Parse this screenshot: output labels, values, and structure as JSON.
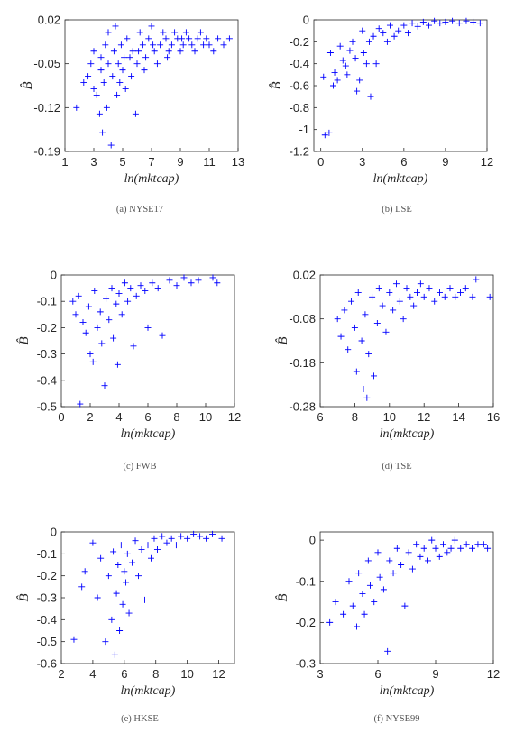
{
  "marker_color": "#0000ff",
  "chart_data": [
    {
      "type": "scatter",
      "caption": "(a)  NYSE17",
      "xlabel": "ln(mktcap)",
      "ylabel": "B̂",
      "xlim": [
        1,
        13
      ],
      "ylim": [
        -0.19,
        0.02
      ],
      "xticks": [
        1,
        3,
        5,
        7,
        9,
        11,
        13
      ],
      "yticks": [
        0.02,
        -0.05,
        -0.12,
        -0.19
      ],
      "yticklabels": [
        "0.02",
        "-0.05",
        "-0.12",
        "-0.19"
      ],
      "points": [
        [
          1.8,
          -0.12
        ],
        [
          2.3,
          -0.08
        ],
        [
          2.6,
          -0.07
        ],
        [
          2.8,
          -0.05
        ],
        [
          3.0,
          -0.09
        ],
        [
          3.0,
          -0.03
        ],
        [
          3.2,
          -0.1
        ],
        [
          3.4,
          -0.13
        ],
        [
          3.5,
          -0.06
        ],
        [
          3.5,
          -0.04
        ],
        [
          3.6,
          -0.16
        ],
        [
          3.7,
          -0.08
        ],
        [
          3.8,
          -0.02
        ],
        [
          3.9,
          -0.12
        ],
        [
          4.0,
          -0.05
        ],
        [
          4.0,
          0.0
        ],
        [
          4.2,
          -0.18
        ],
        [
          4.3,
          -0.07
        ],
        [
          4.4,
          -0.03
        ],
        [
          4.5,
          0.01
        ],
        [
          4.6,
          -0.1
        ],
        [
          4.7,
          -0.05
        ],
        [
          4.9,
          -0.02
        ],
        [
          5.0,
          -0.06
        ],
        [
          5.2,
          -0.09
        ],
        [
          5.3,
          -0.01
        ],
        [
          5.5,
          -0.04
        ],
        [
          5.7,
          -0.03
        ],
        [
          5.9,
          -0.13
        ],
        [
          6.0,
          -0.05
        ],
        [
          6.2,
          0.0
        ],
        [
          6.4,
          -0.02
        ],
        [
          6.6,
          -0.04
        ],
        [
          6.8,
          -0.01
        ],
        [
          7.0,
          0.01
        ],
        [
          7.2,
          -0.03
        ],
        [
          7.4,
          -0.05
        ],
        [
          7.6,
          -0.02
        ],
        [
          7.8,
          0.0
        ],
        [
          8.0,
          -0.01
        ],
        [
          8.2,
          -0.03
        ],
        [
          8.4,
          -0.02
        ],
        [
          8.6,
          0.0
        ],
        [
          8.8,
          -0.01
        ],
        [
          9.0,
          -0.03
        ],
        [
          9.2,
          -0.02
        ],
        [
          9.4,
          0.0
        ],
        [
          9.6,
          -0.01
        ],
        [
          9.8,
          -0.02
        ],
        [
          10.0,
          -0.03
        ],
        [
          10.2,
          -0.01
        ],
        [
          10.4,
          0.0
        ],
        [
          10.6,
          -0.02
        ],
        [
          10.8,
          -0.01
        ],
        [
          11.0,
          -0.02
        ],
        [
          11.3,
          -0.03
        ],
        [
          11.6,
          -0.01
        ],
        [
          12.0,
          -0.02
        ],
        [
          12.4,
          -0.01
        ],
        [
          5.1,
          -0.04
        ],
        [
          6.1,
          -0.03
        ],
        [
          7.1,
          -0.02
        ],
        [
          8.1,
          -0.04
        ],
        [
          9.1,
          -0.01
        ],
        [
          6.5,
          -0.06
        ],
        [
          4.8,
          -0.08
        ],
        [
          5.6,
          -0.07
        ]
      ]
    },
    {
      "type": "scatter",
      "caption": "(b) LSE",
      "xlabel": "ln(mktcap)",
      "ylabel": "B̂",
      "xlim": [
        -0.5,
        12
      ],
      "ylim": [
        -1.2,
        0
      ],
      "xticks": [
        0,
        3,
        6,
        9,
        12
      ],
      "yticks": [
        0,
        -0.2,
        -0.4,
        -0.6,
        -0.8,
        -1,
        -1.2
      ],
      "yticklabels": [
        "0",
        "-0.2",
        "-0.4",
        "-0.6",
        "-0.8",
        "-1",
        "-1.2"
      ],
      "points": [
        [
          0.2,
          -0.52
        ],
        [
          0.3,
          -1.05
        ],
        [
          0.6,
          -1.03
        ],
        [
          0.7,
          -0.3
        ],
        [
          0.9,
          -0.6
        ],
        [
          1.0,
          -0.48
        ],
        [
          1.2,
          -0.55
        ],
        [
          1.4,
          -0.24
        ],
        [
          1.6,
          -0.37
        ],
        [
          1.8,
          -0.42
        ],
        [
          1.9,
          -0.5
        ],
        [
          2.1,
          -0.28
        ],
        [
          2.3,
          -0.2
        ],
        [
          2.5,
          -0.35
        ],
        [
          2.6,
          -0.65
        ],
        [
          2.8,
          -0.55
        ],
        [
          3.0,
          -0.1
        ],
        [
          3.1,
          -0.3
        ],
        [
          3.3,
          -0.4
        ],
        [
          3.5,
          -0.2
        ],
        [
          3.6,
          -0.7
        ],
        [
          3.8,
          -0.15
        ],
        [
          4.0,
          -0.4
        ],
        [
          4.2,
          -0.08
        ],
        [
          4.5,
          -0.12
        ],
        [
          4.8,
          -0.2
        ],
        [
          5.0,
          -0.05
        ],
        [
          5.3,
          -0.15
        ],
        [
          5.6,
          -0.1
        ],
        [
          6.0,
          -0.05
        ],
        [
          6.3,
          -0.12
        ],
        [
          6.6,
          -0.03
        ],
        [
          7.0,
          -0.06
        ],
        [
          7.4,
          -0.02
        ],
        [
          7.8,
          -0.05
        ],
        [
          8.2,
          -0.01
        ],
        [
          8.6,
          -0.03
        ],
        [
          9.0,
          -0.02
        ],
        [
          9.5,
          -0.01
        ],
        [
          10.0,
          -0.03
        ],
        [
          10.5,
          -0.01
        ],
        [
          11.0,
          -0.02
        ],
        [
          11.5,
          -0.03
        ]
      ]
    },
    {
      "type": "scatter",
      "caption": "(c) FWB",
      "xlabel": "ln(mktcap)",
      "ylabel": "B̂",
      "xlim": [
        0,
        12
      ],
      "ylim": [
        -0.5,
        0
      ],
      "xticks": [
        0,
        2,
        4,
        6,
        8,
        10,
        12
      ],
      "yticks": [
        0,
        -0.1,
        -0.2,
        -0.3,
        -0.4,
        -0.5
      ],
      "yticklabels": [
        "0",
        "-0.1",
        "-0.2",
        "-0.3",
        "-0.4",
        "-0.5"
      ],
      "points": [
        [
          0.8,
          -0.1
        ],
        [
          1.0,
          -0.15
        ],
        [
          1.2,
          -0.08
        ],
        [
          1.3,
          -0.49
        ],
        [
          1.5,
          -0.18
        ],
        [
          1.7,
          -0.22
        ],
        [
          1.9,
          -0.12
        ],
        [
          2.0,
          -0.3
        ],
        [
          2.2,
          -0.33
        ],
        [
          2.3,
          -0.06
        ],
        [
          2.5,
          -0.2
        ],
        [
          2.7,
          -0.14
        ],
        [
          2.8,
          -0.26
        ],
        [
          3.0,
          -0.42
        ],
        [
          3.1,
          -0.09
        ],
        [
          3.3,
          -0.17
        ],
        [
          3.5,
          -0.05
        ],
        [
          3.6,
          -0.24
        ],
        [
          3.8,
          -0.11
        ],
        [
          3.9,
          -0.34
        ],
        [
          4.0,
          -0.07
        ],
        [
          4.2,
          -0.15
        ],
        [
          4.4,
          -0.03
        ],
        [
          4.6,
          -0.1
        ],
        [
          4.8,
          -0.05
        ],
        [
          5.0,
          -0.27
        ],
        [
          5.2,
          -0.08
        ],
        [
          5.5,
          -0.04
        ],
        [
          5.8,
          -0.06
        ],
        [
          6.0,
          -0.2
        ],
        [
          6.3,
          -0.03
        ],
        [
          6.7,
          -0.05
        ],
        [
          7.0,
          -0.23
        ],
        [
          7.5,
          -0.02
        ],
        [
          8.0,
          -0.04
        ],
        [
          8.5,
          -0.01
        ],
        [
          9.0,
          -0.03
        ],
        [
          9.5,
          -0.02
        ],
        [
          10.5,
          -0.01
        ],
        [
          10.8,
          -0.03
        ]
      ]
    },
    {
      "type": "scatter",
      "caption": "(d) TSE",
      "xlabel": "ln(mktcap)",
      "ylabel": "B̂",
      "xlim": [
        6,
        16
      ],
      "ylim": [
        -0.28,
        0.02
      ],
      "xticks": [
        6,
        8,
        10,
        12,
        14,
        16
      ],
      "yticks": [
        0.02,
        -0.08,
        -0.18,
        -0.28
      ],
      "yticklabels": [
        "0.02",
        "-0.08",
        "-0.18",
        "-0.28"
      ],
      "points": [
        [
          7.0,
          -0.08
        ],
        [
          7.2,
          -0.12
        ],
        [
          7.4,
          -0.06
        ],
        [
          7.6,
          -0.15
        ],
        [
          7.8,
          -0.04
        ],
        [
          8.0,
          -0.1
        ],
        [
          8.1,
          -0.2
        ],
        [
          8.2,
          -0.02
        ],
        [
          8.4,
          -0.13
        ],
        [
          8.5,
          -0.24
        ],
        [
          8.6,
          -0.07
        ],
        [
          8.7,
          -0.26
        ],
        [
          8.8,
          -0.16
        ],
        [
          9.0,
          -0.03
        ],
        [
          9.1,
          -0.21
        ],
        [
          9.3,
          -0.09
        ],
        [
          9.4,
          -0.01
        ],
        [
          9.6,
          -0.05
        ],
        [
          9.8,
          -0.11
        ],
        [
          10.0,
          -0.02
        ],
        [
          10.2,
          -0.06
        ],
        [
          10.4,
          0.0
        ],
        [
          10.6,
          -0.04
        ],
        [
          10.8,
          -0.08
        ],
        [
          11.0,
          -0.01
        ],
        [
          11.2,
          -0.03
        ],
        [
          11.4,
          -0.05
        ],
        [
          11.6,
          -0.02
        ],
        [
          11.8,
          0.0
        ],
        [
          12.0,
          -0.03
        ],
        [
          12.3,
          -0.01
        ],
        [
          12.6,
          -0.04
        ],
        [
          12.9,
          -0.02
        ],
        [
          13.2,
          -0.03
        ],
        [
          13.5,
          -0.01
        ],
        [
          13.8,
          -0.03
        ],
        [
          14.1,
          -0.02
        ],
        [
          14.4,
          -0.01
        ],
        [
          14.8,
          -0.03
        ],
        [
          15.0,
          0.01
        ],
        [
          15.8,
          -0.03
        ]
      ]
    },
    {
      "type": "scatter",
      "caption": "(e) HKSE",
      "xlabel": "ln(mktcap)",
      "ylabel": "B̂",
      "xlim": [
        2,
        13
      ],
      "ylim": [
        -0.6,
        0
      ],
      "xticks": [
        2,
        4,
        6,
        8,
        10,
        12
      ],
      "yticks": [
        0,
        -0.1,
        -0.2,
        -0.3,
        -0.4,
        -0.5,
        -0.6
      ],
      "yticklabels": [
        "0",
        "-0.1",
        "-0.2",
        "-0.3",
        "-0.4",
        "-0.5",
        "-0.6"
      ],
      "points": [
        [
          2.8,
          -0.49
        ],
        [
          3.3,
          -0.25
        ],
        [
          3.5,
          -0.18
        ],
        [
          4.0,
          -0.05
        ],
        [
          4.3,
          -0.3
        ],
        [
          4.5,
          -0.12
        ],
        [
          4.8,
          -0.5
        ],
        [
          5.0,
          -0.2
        ],
        [
          5.2,
          -0.4
        ],
        [
          5.3,
          -0.09
        ],
        [
          5.4,
          -0.56
        ],
        [
          5.5,
          -0.28
        ],
        [
          5.6,
          -0.15
        ],
        [
          5.7,
          -0.45
        ],
        [
          5.8,
          -0.06
        ],
        [
          5.9,
          -0.33
        ],
        [
          6.0,
          -0.18
        ],
        [
          6.1,
          -0.23
        ],
        [
          6.2,
          -0.1
        ],
        [
          6.3,
          -0.37
        ],
        [
          6.5,
          -0.14
        ],
        [
          6.7,
          -0.04
        ],
        [
          6.9,
          -0.2
        ],
        [
          7.1,
          -0.08
        ],
        [
          7.3,
          -0.31
        ],
        [
          7.5,
          -0.06
        ],
        [
          7.7,
          -0.12
        ],
        [
          7.9,
          -0.03
        ],
        [
          8.1,
          -0.08
        ],
        [
          8.4,
          -0.02
        ],
        [
          8.7,
          -0.05
        ],
        [
          9.0,
          -0.03
        ],
        [
          9.3,
          -0.06
        ],
        [
          9.6,
          -0.02
        ],
        [
          10.0,
          -0.03
        ],
        [
          10.4,
          -0.01
        ],
        [
          10.8,
          -0.02
        ],
        [
          11.2,
          -0.03
        ],
        [
          11.6,
          -0.01
        ],
        [
          12.2,
          -0.03
        ]
      ]
    },
    {
      "type": "scatter",
      "caption": "(f) NYSE99",
      "xlabel": "ln(mktcap)",
      "ylabel": "B̂",
      "xlim": [
        3,
        12
      ],
      "ylim": [
        -0.3,
        0.02
      ],
      "xticks": [
        3,
        6,
        9,
        12
      ],
      "yticks": [
        0,
        -0.1,
        -0.2,
        -0.3
      ],
      "yticklabels": [
        "0",
        "-0.1",
        "-0.2",
        "-0.3"
      ],
      "points": [
        [
          3.5,
          -0.2
        ],
        [
          3.8,
          -0.15
        ],
        [
          4.2,
          -0.18
        ],
        [
          4.5,
          -0.1
        ],
        [
          4.7,
          -0.16
        ],
        [
          4.9,
          -0.21
        ],
        [
          5.0,
          -0.08
        ],
        [
          5.2,
          -0.13
        ],
        [
          5.3,
          -0.18
        ],
        [
          5.5,
          -0.05
        ],
        [
          5.6,
          -0.11
        ],
        [
          5.8,
          -0.15
        ],
        [
          6.0,
          -0.03
        ],
        [
          6.1,
          -0.09
        ],
        [
          6.3,
          -0.12
        ],
        [
          6.5,
          -0.27
        ],
        [
          6.6,
          -0.05
        ],
        [
          6.8,
          -0.08
        ],
        [
          7.0,
          -0.02
        ],
        [
          7.2,
          -0.06
        ],
        [
          7.4,
          -0.16
        ],
        [
          7.6,
          -0.03
        ],
        [
          7.8,
          -0.07
        ],
        [
          8.0,
          -0.01
        ],
        [
          8.2,
          -0.04
        ],
        [
          8.4,
          -0.02
        ],
        [
          8.6,
          -0.05
        ],
        [
          8.8,
          0.0
        ],
        [
          9.0,
          -0.02
        ],
        [
          9.2,
          -0.04
        ],
        [
          9.4,
          -0.01
        ],
        [
          9.6,
          -0.03
        ],
        [
          9.8,
          -0.02
        ],
        [
          10.0,
          0.0
        ],
        [
          10.3,
          -0.02
        ],
        [
          10.6,
          -0.01
        ],
        [
          10.9,
          -0.02
        ],
        [
          11.2,
          -0.01
        ],
        [
          11.5,
          -0.01
        ],
        [
          11.7,
          -0.02
        ]
      ]
    }
  ]
}
